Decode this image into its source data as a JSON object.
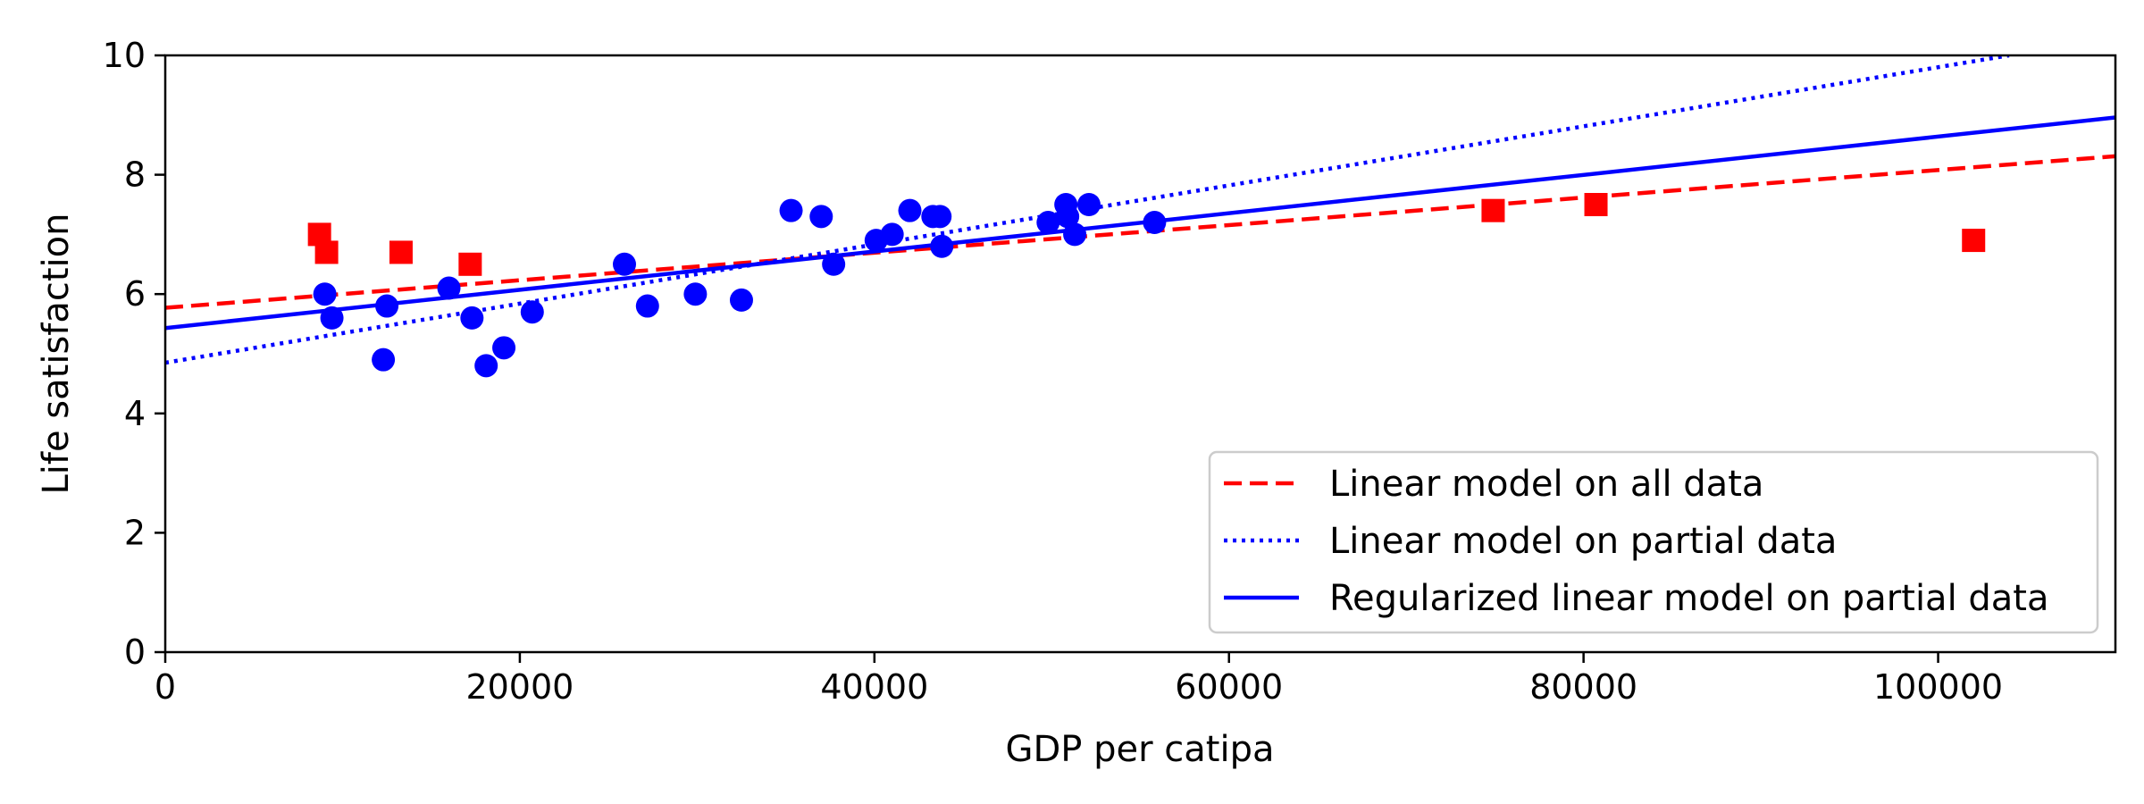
{
  "chart_data": {
    "type": "scatter",
    "title": "",
    "xlabel": "GDP per catipa",
    "ylabel": "Life satisfaction",
    "xlim": [
      0,
      110000
    ],
    "ylim": [
      0,
      10
    ],
    "xticks": [
      0,
      20000,
      40000,
      60000,
      80000,
      100000
    ],
    "yticks": [
      0,
      2,
      4,
      6,
      8,
      10
    ],
    "grid": false,
    "legend_position": "lower-right",
    "points": [
      {
        "name": "partial-data-points",
        "marker": "circle",
        "color": "#0000ff",
        "x": [
          9000,
          9400,
          12300,
          12500,
          16000,
          17300,
          18100,
          19100,
          20700,
          25900,
          27200,
          29900,
          32500,
          35300,
          37000,
          37700,
          40100,
          41000,
          42000,
          43300,
          43700,
          43800,
          49800,
          50800,
          51300,
          50900,
          52100,
          55800
        ],
        "y": [
          6.0,
          5.6,
          4.9,
          5.8,
          6.1,
          5.6,
          4.8,
          5.1,
          5.7,
          6.5,
          5.8,
          6.0,
          5.9,
          7.4,
          7.3,
          6.5,
          6.9,
          7.0,
          7.4,
          7.3,
          7.3,
          6.8,
          7.2,
          7.5,
          7.0,
          7.3,
          7.5,
          7.2
        ]
      },
      {
        "name": "excluded-data-points",
        "marker": "square",
        "color": "#ff0000",
        "x": [
          8700,
          9100,
          13300,
          17200,
          74900,
          80700,
          102000
        ],
        "y": [
          7.0,
          6.7,
          6.7,
          6.5,
          7.4,
          7.5,
          6.9
        ]
      }
    ],
    "series": [
      {
        "name": "Linear model on all data",
        "style": "dashed",
        "color": "#ff0000",
        "x": [
          0,
          110000
        ],
        "y": [
          5.77,
          8.31
        ]
      },
      {
        "name": "Linear model on partial data",
        "style": "dotted",
        "color": "#0000ff",
        "x": [
          0,
          104000
        ],
        "y": [
          4.85,
          10.0
        ]
      },
      {
        "name": "Regularized linear model on partial data",
        "style": "solid",
        "color": "#0000ff",
        "x": [
          0,
          110000
        ],
        "y": [
          5.43,
          8.96
        ]
      }
    ]
  }
}
